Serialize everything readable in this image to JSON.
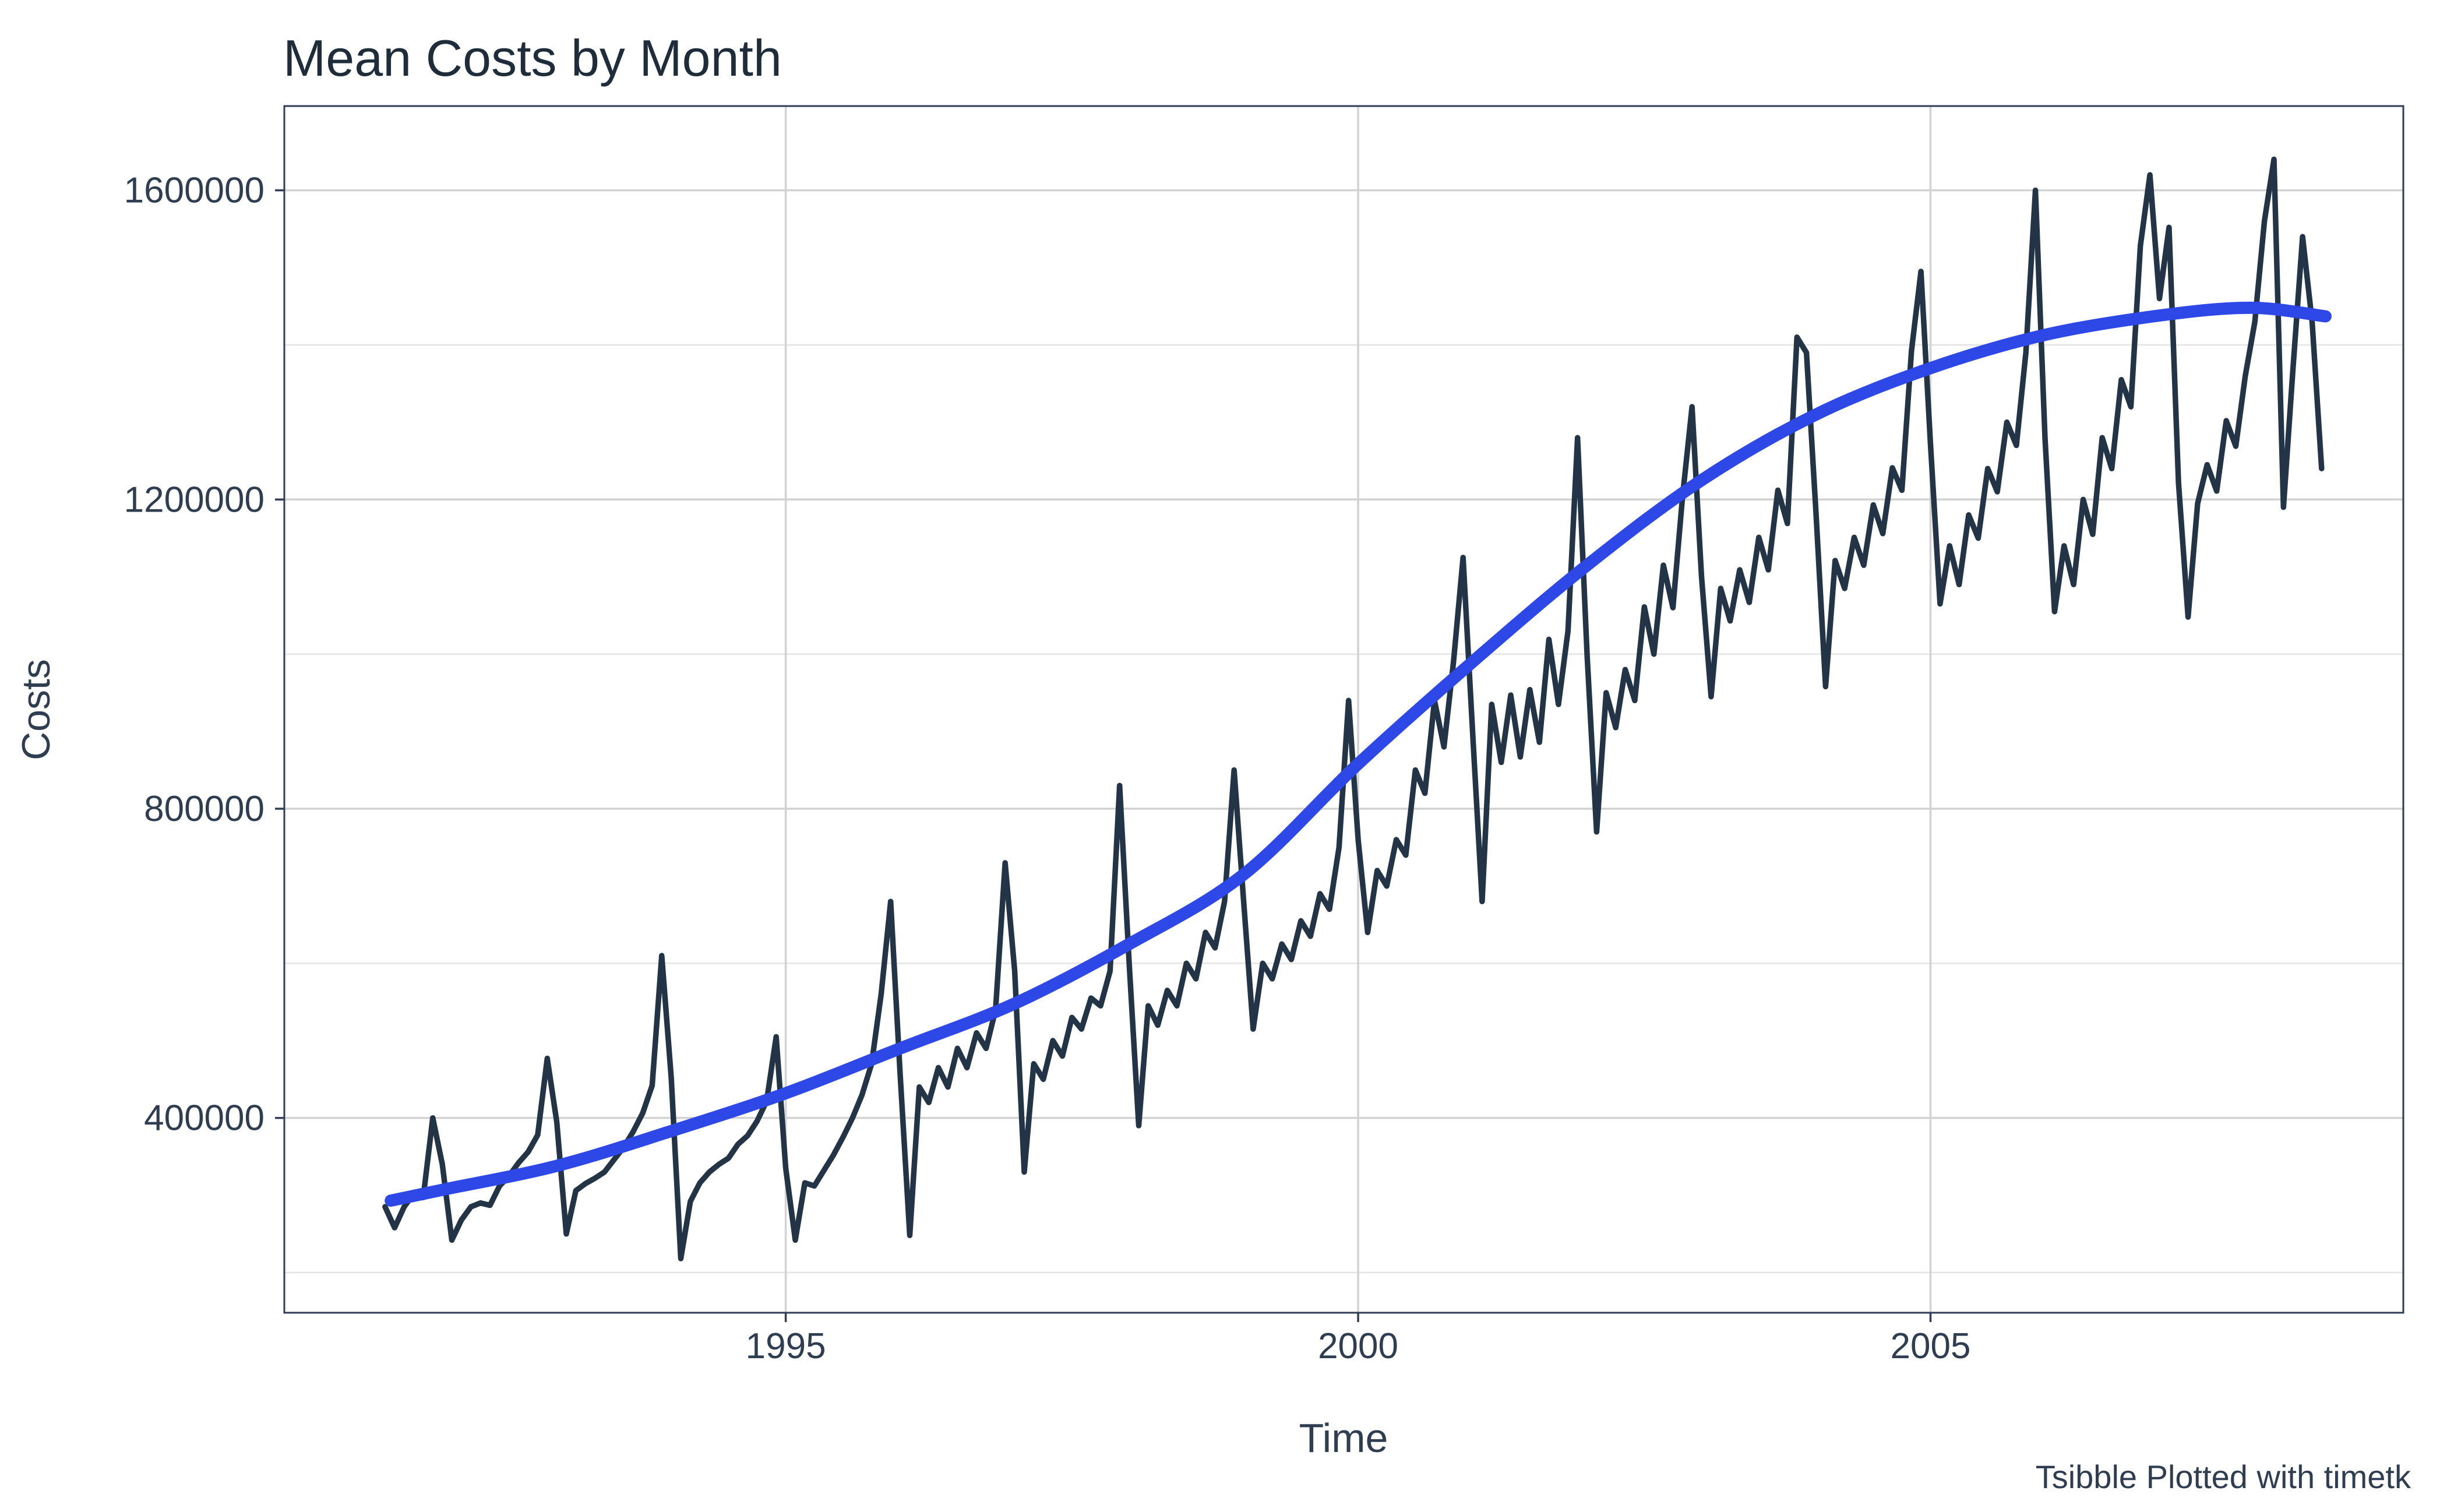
{
  "chart_data": {
    "type": "line",
    "title": "Mean Costs by Month",
    "xlabel": "Time",
    "ylabel": "Costs",
    "caption": "Tsibble Plotted with timetk",
    "legend_position": "none",
    "grid": true,
    "x_range": [
      1990.62,
      2009.13
    ],
    "y_range": [
      148000,
      1709000
    ],
    "x_ticks": [
      {
        "value": 1995,
        "label": "1995"
      },
      {
        "value": 2000,
        "label": "2000"
      },
      {
        "value": 2005,
        "label": "2005"
      }
    ],
    "y_ticks": [
      {
        "value": 400000,
        "label": "400000"
      },
      {
        "value": 800000,
        "label": "800000"
      },
      {
        "value": 1200000,
        "label": "1200000"
      },
      {
        "value": 1600000,
        "label": "1600000"
      }
    ],
    "y_minor_gridlines": [
      200000,
      600000,
      1000000,
      1400000
    ],
    "series": [
      {
        "name": "mean-monthly-costs",
        "color": "#233447",
        "start": "1991-07",
        "frequency": "monthly",
        "values": [
          285000,
          258000,
          285000,
          302000,
          297000,
          400000,
          340000,
          242000,
          268000,
          285000,
          290000,
          287000,
          312000,
          325000,
          342000,
          356000,
          378000,
          477000,
          395000,
          250000,
          306000,
          315000,
          322000,
          330000,
          346000,
          362000,
          382000,
          406000,
          442000,
          610000,
          452000,
          218000,
          292000,
          316000,
          330000,
          340000,
          348000,
          366000,
          377000,
          396000,
          422000,
          505000,
          335000,
          242000,
          316000,
          312000,
          332000,
          352000,
          375000,
          400000,
          430000,
          470000,
          560000,
          680000,
          455000,
          248000,
          440000,
          420000,
          465000,
          440000,
          490000,
          465000,
          510000,
          490000,
          540000,
          730000,
          590000,
          330000,
          470000,
          450000,
          500000,
          480000,
          530000,
          515000,
          555000,
          545000,
          590000,
          830000,
          600000,
          390000,
          545000,
          520000,
          565000,
          545000,
          600000,
          580000,
          640000,
          620000,
          680000,
          850000,
          680000,
          515000,
          600000,
          580000,
          625000,
          605000,
          655000,
          635000,
          690000,
          670000,
          750000,
          940000,
          760000,
          640000,
          720000,
          700000,
          760000,
          740000,
          850000,
          820000,
          940000,
          880000,
          990000,
          1125000,
          900000,
          680000,
          935000,
          860000,
          947000,
          867000,
          954000,
          886000,
          1019000,
          935000,
          1030000,
          1280000,
          1000000,
          770000,
          950000,
          905000,
          980000,
          940000,
          1061000,
          1000000,
          1115000,
          1060000,
          1203000,
          1320000,
          1100000,
          945000,
          1085000,
          1043000,
          1109000,
          1067000,
          1151000,
          1109000,
          1212000,
          1169000,
          1410000,
          1390000,
          1182000,
          958000,
          1121000,
          1085000,
          1151000,
          1115000,
          1193000,
          1156000,
          1241000,
          1212000,
          1392000,
          1495000,
          1271000,
          1065000,
          1140000,
          1090000,
          1180000,
          1150000,
          1240000,
          1210000,
          1300000,
          1270000,
          1390000,
          1600000,
          1280000,
          1055000,
          1140000,
          1090000,
          1200000,
          1155000,
          1280000,
          1240000,
          1355000,
          1320000,
          1528000,
          1620000,
          1460000,
          1552000,
          1221000,
          1048000,
          1195000,
          1245000,
          1211000,
          1302000,
          1269000,
          1360000,
          1430000,
          1560000,
          1640000,
          1190000,
          1370000,
          1540000,
          1430000,
          1240000
        ]
      }
    ],
    "trend": {
      "name": "smooth-trend",
      "color": "#2d48e6",
      "points": [
        [
          1991.55,
          293000
        ],
        [
          1992,
          307000
        ],
        [
          1993,
          338000
        ],
        [
          1994,
          383000
        ],
        [
          1995,
          432000
        ],
        [
          1996,
          490000
        ],
        [
          1997,
          548000
        ],
        [
          1998,
          625000
        ],
        [
          1999,
          715000
        ],
        [
          2000,
          858000
        ],
        [
          2001,
          990000
        ],
        [
          2002,
          1115000
        ],
        [
          2003,
          1225000
        ],
        [
          2004,
          1310000
        ],
        [
          2005,
          1370000
        ],
        [
          2006,
          1413000
        ],
        [
          2007,
          1438000
        ],
        [
          2007.8,
          1448000
        ],
        [
          2008.45,
          1437000
        ]
      ]
    },
    "colors": {
      "series_line": "#233447",
      "trend_line": "#2d48e6",
      "major_grid": "#d2d2d2",
      "minor_grid": "#e4e4e4",
      "panel_border": "#2f3e54",
      "tick_mark": "#2f3e54",
      "text": "#2e3d4f",
      "title_text": "#1f2c3a",
      "background": "#ffffff"
    }
  }
}
